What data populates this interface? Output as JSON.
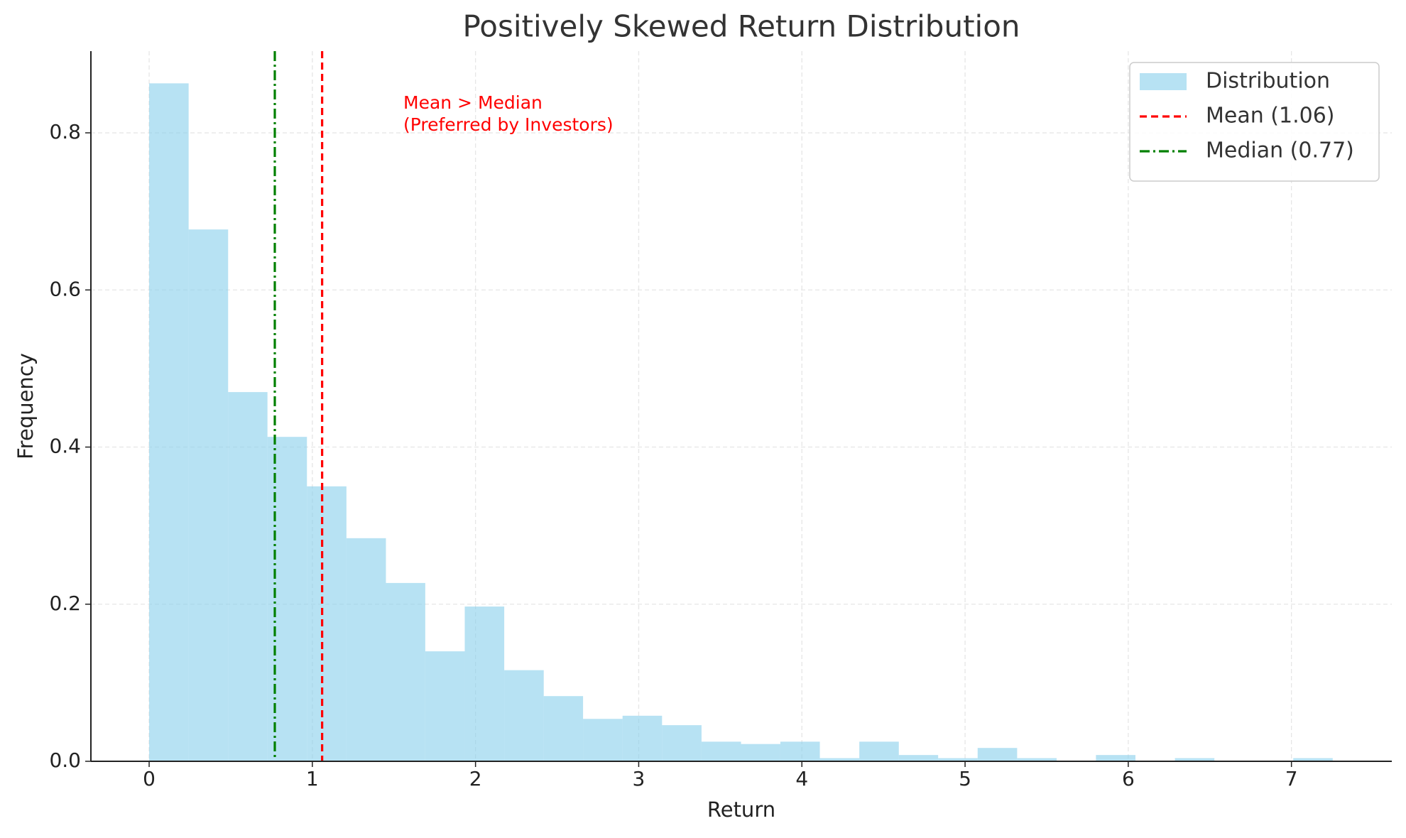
{
  "chart_data": {
    "type": "histogram",
    "title": "Positively Skewed Return Distribution",
    "x_label": "Return",
    "y_label": "Frequency",
    "bins": [
      0,
      0.242,
      0.484,
      0.725,
      0.967,
      1.209,
      1.451,
      1.692,
      1.934,
      2.176,
      2.418,
      2.659,
      2.901,
      3.143,
      3.385,
      3.627,
      3.868,
      4.11,
      4.352,
      4.594,
      4.835,
      5.077,
      5.319,
      5.561,
      5.802,
      6.044,
      6.286,
      6.528,
      6.77,
      7.011,
      7.253
    ],
    "series": [
      {
        "name": "Distribution",
        "color": "#87ceeb",
        "alpha": 0.6,
        "values": [
          0.863,
          0.677,
          0.47,
          0.413,
          0.35,
          0.284,
          0.227,
          0.14,
          0.197,
          0.116,
          0.083,
          0.054,
          0.058,
          0.046,
          0.025,
          0.022,
          0.025,
          0.004,
          0.025,
          0.008,
          0.004,
          0.017,
          0.004,
          0,
          0.008,
          0,
          0.004,
          0,
          0,
          0.004
        ]
      }
    ],
    "lines": [
      {
        "name": "Mean (1.06)",
        "value": 1.06,
        "color": "#ff0000",
        "style": "dashed"
      },
      {
        "name": "Median (0.77)",
        "value": 0.77,
        "color": "#008000",
        "style": "dashdot"
      }
    ],
    "annotation": [
      "Mean > Median",
      "(Preferred by Investors)"
    ],
    "annotation_color": "#ff0000",
    "xlim": [
      -0.357,
      7.615
    ],
    "ylim": [
      0,
      0.904
    ],
    "xticks": [
      0,
      1,
      2,
      3,
      4,
      5,
      6,
      7
    ],
    "yticks": [
      {
        "value": 0,
        "label": "0.0"
      },
      {
        "value": 0.2,
        "label": "0.2"
      },
      {
        "value": 0.4,
        "label": "0.4"
      },
      {
        "value": 0.6,
        "label": "0.6"
      },
      {
        "value": 0.8,
        "label": "0.8"
      }
    ],
    "grid": true,
    "legend": "upper right"
  }
}
